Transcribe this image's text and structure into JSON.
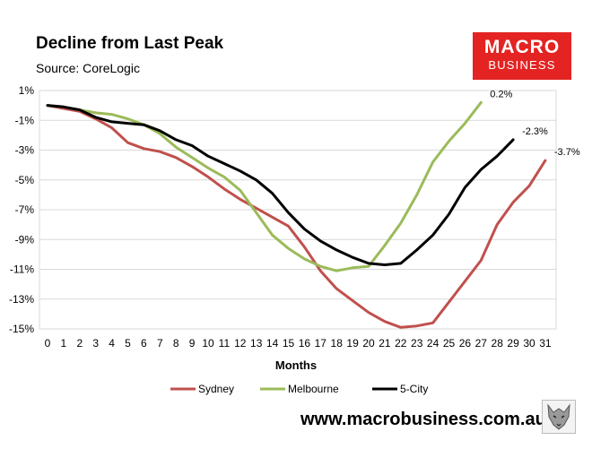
{
  "title": "Decline from Last Peak",
  "source": "Source: CoreLogic",
  "logo": {
    "line1": "MACRO",
    "line2": "BUSINESS"
  },
  "footer": {
    "url": "www.macrobusiness.com.au"
  },
  "chart_data": {
    "type": "line",
    "title": "Decline from Last Peak",
    "xlabel": "Months",
    "ylabel": "",
    "x": [
      0,
      1,
      2,
      3,
      4,
      5,
      6,
      7,
      8,
      9,
      10,
      11,
      12,
      13,
      14,
      15,
      16,
      17,
      18,
      19,
      20,
      21,
      22,
      23,
      24,
      25,
      26,
      27,
      28,
      29,
      30,
      31
    ],
    "xlim": [
      0,
      31
    ],
    "ylim": [
      -15,
      1
    ],
    "yticks": [
      1,
      -1,
      -3,
      -5,
      -7,
      -9,
      -11,
      -13,
      -15
    ],
    "ytick_labels": [
      "1%",
      "-1%",
      "-3%",
      "-5%",
      "-7%",
      "-9%",
      "-11%",
      "-13%",
      "-15%"
    ],
    "grid": "horizontal",
    "legend_position": "bottom",
    "series": [
      {
        "name": "Sydney",
        "color": "#c0504d",
        "end_label": "-3.7%",
        "values": [
          0,
          -0.2,
          -0.4,
          -0.9,
          -1.5,
          -2.5,
          -2.9,
          -3.1,
          -3.5,
          -4.1,
          -4.8,
          -5.6,
          -6.3,
          -6.9,
          -7.5,
          -8.1,
          -9.5,
          -11.1,
          -12.3,
          -13.1,
          -13.9,
          -14.5,
          -14.9,
          -14.8,
          -14.6,
          -13.2,
          -11.8,
          -10.4,
          -8.0,
          -6.5,
          -5.4,
          -3.7
        ]
      },
      {
        "name": "Melbourne",
        "color": "#9bbb59",
        "end_label": "0.2%",
        "values": [
          0,
          -0.1,
          -0.3,
          -0.5,
          -0.6,
          -0.9,
          -1.3,
          -1.9,
          -2.8,
          -3.5,
          -4.2,
          -4.8,
          -5.7,
          -7.2,
          -8.7,
          -9.6,
          -10.3,
          -10.8,
          -11.1,
          -10.9,
          -10.8,
          -9.4,
          -7.9,
          -6.0,
          -3.8,
          -2.4,
          -1.2,
          0.2,
          null,
          null,
          null,
          null
        ]
      },
      {
        "name": "5-City",
        "color": "#000000",
        "end_label": "-2.3%",
        "values": [
          0,
          -0.1,
          -0.3,
          -0.8,
          -1.1,
          -1.2,
          -1.3,
          -1.7,
          -2.3,
          -2.7,
          -3.4,
          -3.9,
          -4.4,
          -5.0,
          -5.9,
          -7.2,
          -8.3,
          -9.1,
          -9.7,
          -10.2,
          -10.6,
          -10.7,
          -10.6,
          -9.7,
          -8.7,
          -7.3,
          -5.5,
          -4.3,
          -3.4,
          -2.3,
          null,
          null
        ]
      }
    ]
  }
}
